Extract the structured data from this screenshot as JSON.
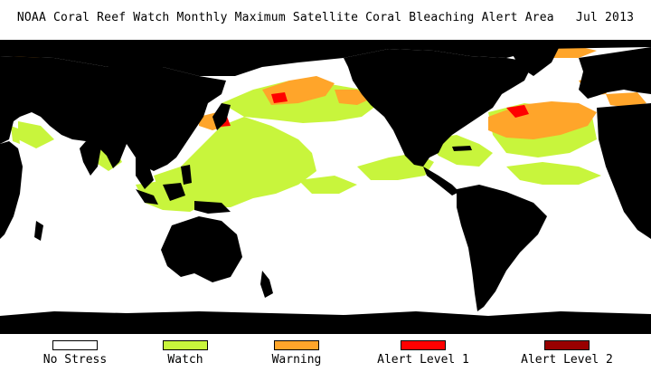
{
  "title": "NOAA Coral Reef Watch Monthly Maximum Satellite Coral Bleaching Alert Area   Jul 2013",
  "colors": {
    "land": "#000000",
    "no_stress": "#ffffff",
    "watch": "#c8f53c",
    "warning": "#ffa52a",
    "alert_level_1": "#ff0000",
    "alert_level_2": "#990000"
  },
  "legend": [
    {
      "label": "No Stress",
      "color": "#ffffff"
    },
    {
      "label": "Watch",
      "color": "#c8f53c"
    },
    {
      "label": "Warning",
      "color": "#ffa52a"
    },
    {
      "label": "Alert Level 1",
      "color": "#ff0000"
    },
    {
      "label": "Alert Level 2",
      "color": "#990000"
    }
  ]
}
